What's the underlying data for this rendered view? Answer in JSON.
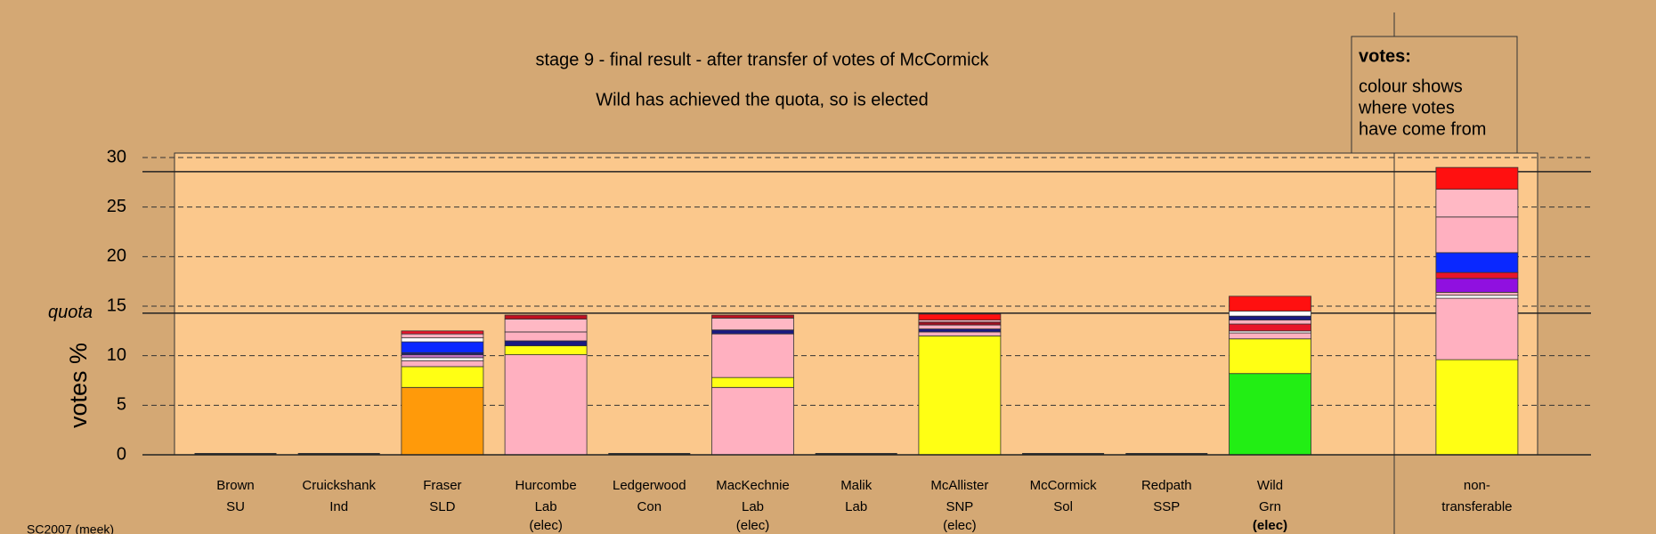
{
  "chart_data": {
    "type": "stacked-bar",
    "title": "stage 9 - final result - after transfer of votes of McCormick",
    "subtitle": "Wild has achieved the quota, so is elected",
    "y_label": "votes %",
    "legend": {
      "heading": "votes:",
      "lines": [
        "colour shows",
        "where votes",
        "have come from"
      ]
    },
    "footer": "SC2007 (meek)",
    "ylim": [
      0,
      30
    ],
    "yticks": [
      0,
      5,
      10,
      15,
      20,
      25,
      30
    ],
    "grid": true,
    "quota": {
      "value": 14.29,
      "label": "quota"
    },
    "upper_line": 28.57,
    "categories": [
      "Brown",
      "Cruickshank",
      "Fraser",
      "Hurcombe",
      "Ledgerwood",
      "MacKechnie",
      "Malik",
      "McAllister",
      "McCormick",
      "Redpath",
      "Wild",
      "non-"
    ],
    "parties": [
      "SU",
      "Ind",
      "SLD",
      "Lab",
      "Con",
      "Lab",
      "Lab",
      "SNP",
      "Sol",
      "SSP",
      "Grn",
      "transferable"
    ],
    "status": [
      null,
      null,
      null,
      "(elec)",
      null,
      "(elec)",
      null,
      "(elec)",
      null,
      null,
      "(elec)",
      null
    ],
    "highlight_index": 10,
    "stacks": [
      [],
      [],
      [
        {
          "color": "#ff9a0a",
          "value": 6.8
        },
        {
          "color": "#ffff14",
          "value": 2.1
        },
        {
          "color": "#ffb0c0",
          "value": 0.6
        },
        {
          "color": "#ffffff",
          "value": 0.3
        },
        {
          "color": "#c070c0",
          "value": 0.3
        },
        {
          "color": "#1a1a80",
          "value": 0.2
        },
        {
          "color": "#0a28ff",
          "value": 1.1
        },
        {
          "color": "#ffffff",
          "value": 0.4
        },
        {
          "color": "#ffb0c0",
          "value": 0.4
        },
        {
          "color": "#e8142a",
          "value": 0.3
        }
      ],
      [
        {
          "color": "#ffb0c0",
          "value": 10.1
        },
        {
          "color": "#ffff14",
          "value": 0.9
        },
        {
          "color": "#1a1a80",
          "value": 0.5
        },
        {
          "color": "#ffb0c0",
          "value": 0.9
        },
        {
          "color": "#ffb8c4",
          "value": 1.3
        },
        {
          "color": "#c01020",
          "value": 0.4
        }
      ],
      [],
      [
        {
          "color": "#ffb0c0",
          "value": 6.8
        },
        {
          "color": "#ffff14",
          "value": 1.0
        },
        {
          "color": "#ffb0c0",
          "value": 4.4
        },
        {
          "color": "#1a1a80",
          "value": 0.4
        },
        {
          "color": "#ffb8c4",
          "value": 1.2
        },
        {
          "color": "#c01020",
          "value": 0.3
        }
      ],
      [],
      [
        {
          "color": "#ffff14",
          "value": 12.0
        },
        {
          "color": "#ffb0c0",
          "value": 0.4
        },
        {
          "color": "#1a1a80",
          "value": 0.3
        },
        {
          "color": "#ffb0c0",
          "value": 0.4
        },
        {
          "color": "#a01020",
          "value": 0.3
        },
        {
          "color": "#ffb8c4",
          "value": 0.2
        },
        {
          "color": "#ff1010",
          "value": 0.6
        }
      ],
      [],
      [],
      [
        {
          "color": "#22ee14",
          "value": 8.2
        },
        {
          "color": "#ffff14",
          "value": 3.5
        },
        {
          "color": "#ffb0c0",
          "value": 0.6
        },
        {
          "color": "#ffffff",
          "value": 0.2
        },
        {
          "color": "#e8142a",
          "value": 0.7
        },
        {
          "color": "#ffb0c0",
          "value": 0.4
        },
        {
          "color": "#1a1a80",
          "value": 0.4
        },
        {
          "color": "#ffffff",
          "value": 0.5
        },
        {
          "color": "#ff1010",
          "value": 1.5
        }
      ],
      [
        {
          "color": "#ffff14",
          "value": 9.6
        },
        {
          "color": "#ffb0c0",
          "value": 6.2
        },
        {
          "color": "#ffffff",
          "value": 0.3
        },
        {
          "color": "#ffb0c0",
          "value": 0.3
        },
        {
          "color": "#9010e0",
          "value": 1.4
        },
        {
          "color": "#e8142a",
          "value": 0.6
        },
        {
          "color": "#0a28ff",
          "value": 2.0
        },
        {
          "color": "#ffb0c0",
          "value": 3.6
        },
        {
          "color": "#ffb8c4",
          "value": 2.8
        },
        {
          "color": "#ff1010",
          "value": 2.2
        }
      ]
    ]
  }
}
